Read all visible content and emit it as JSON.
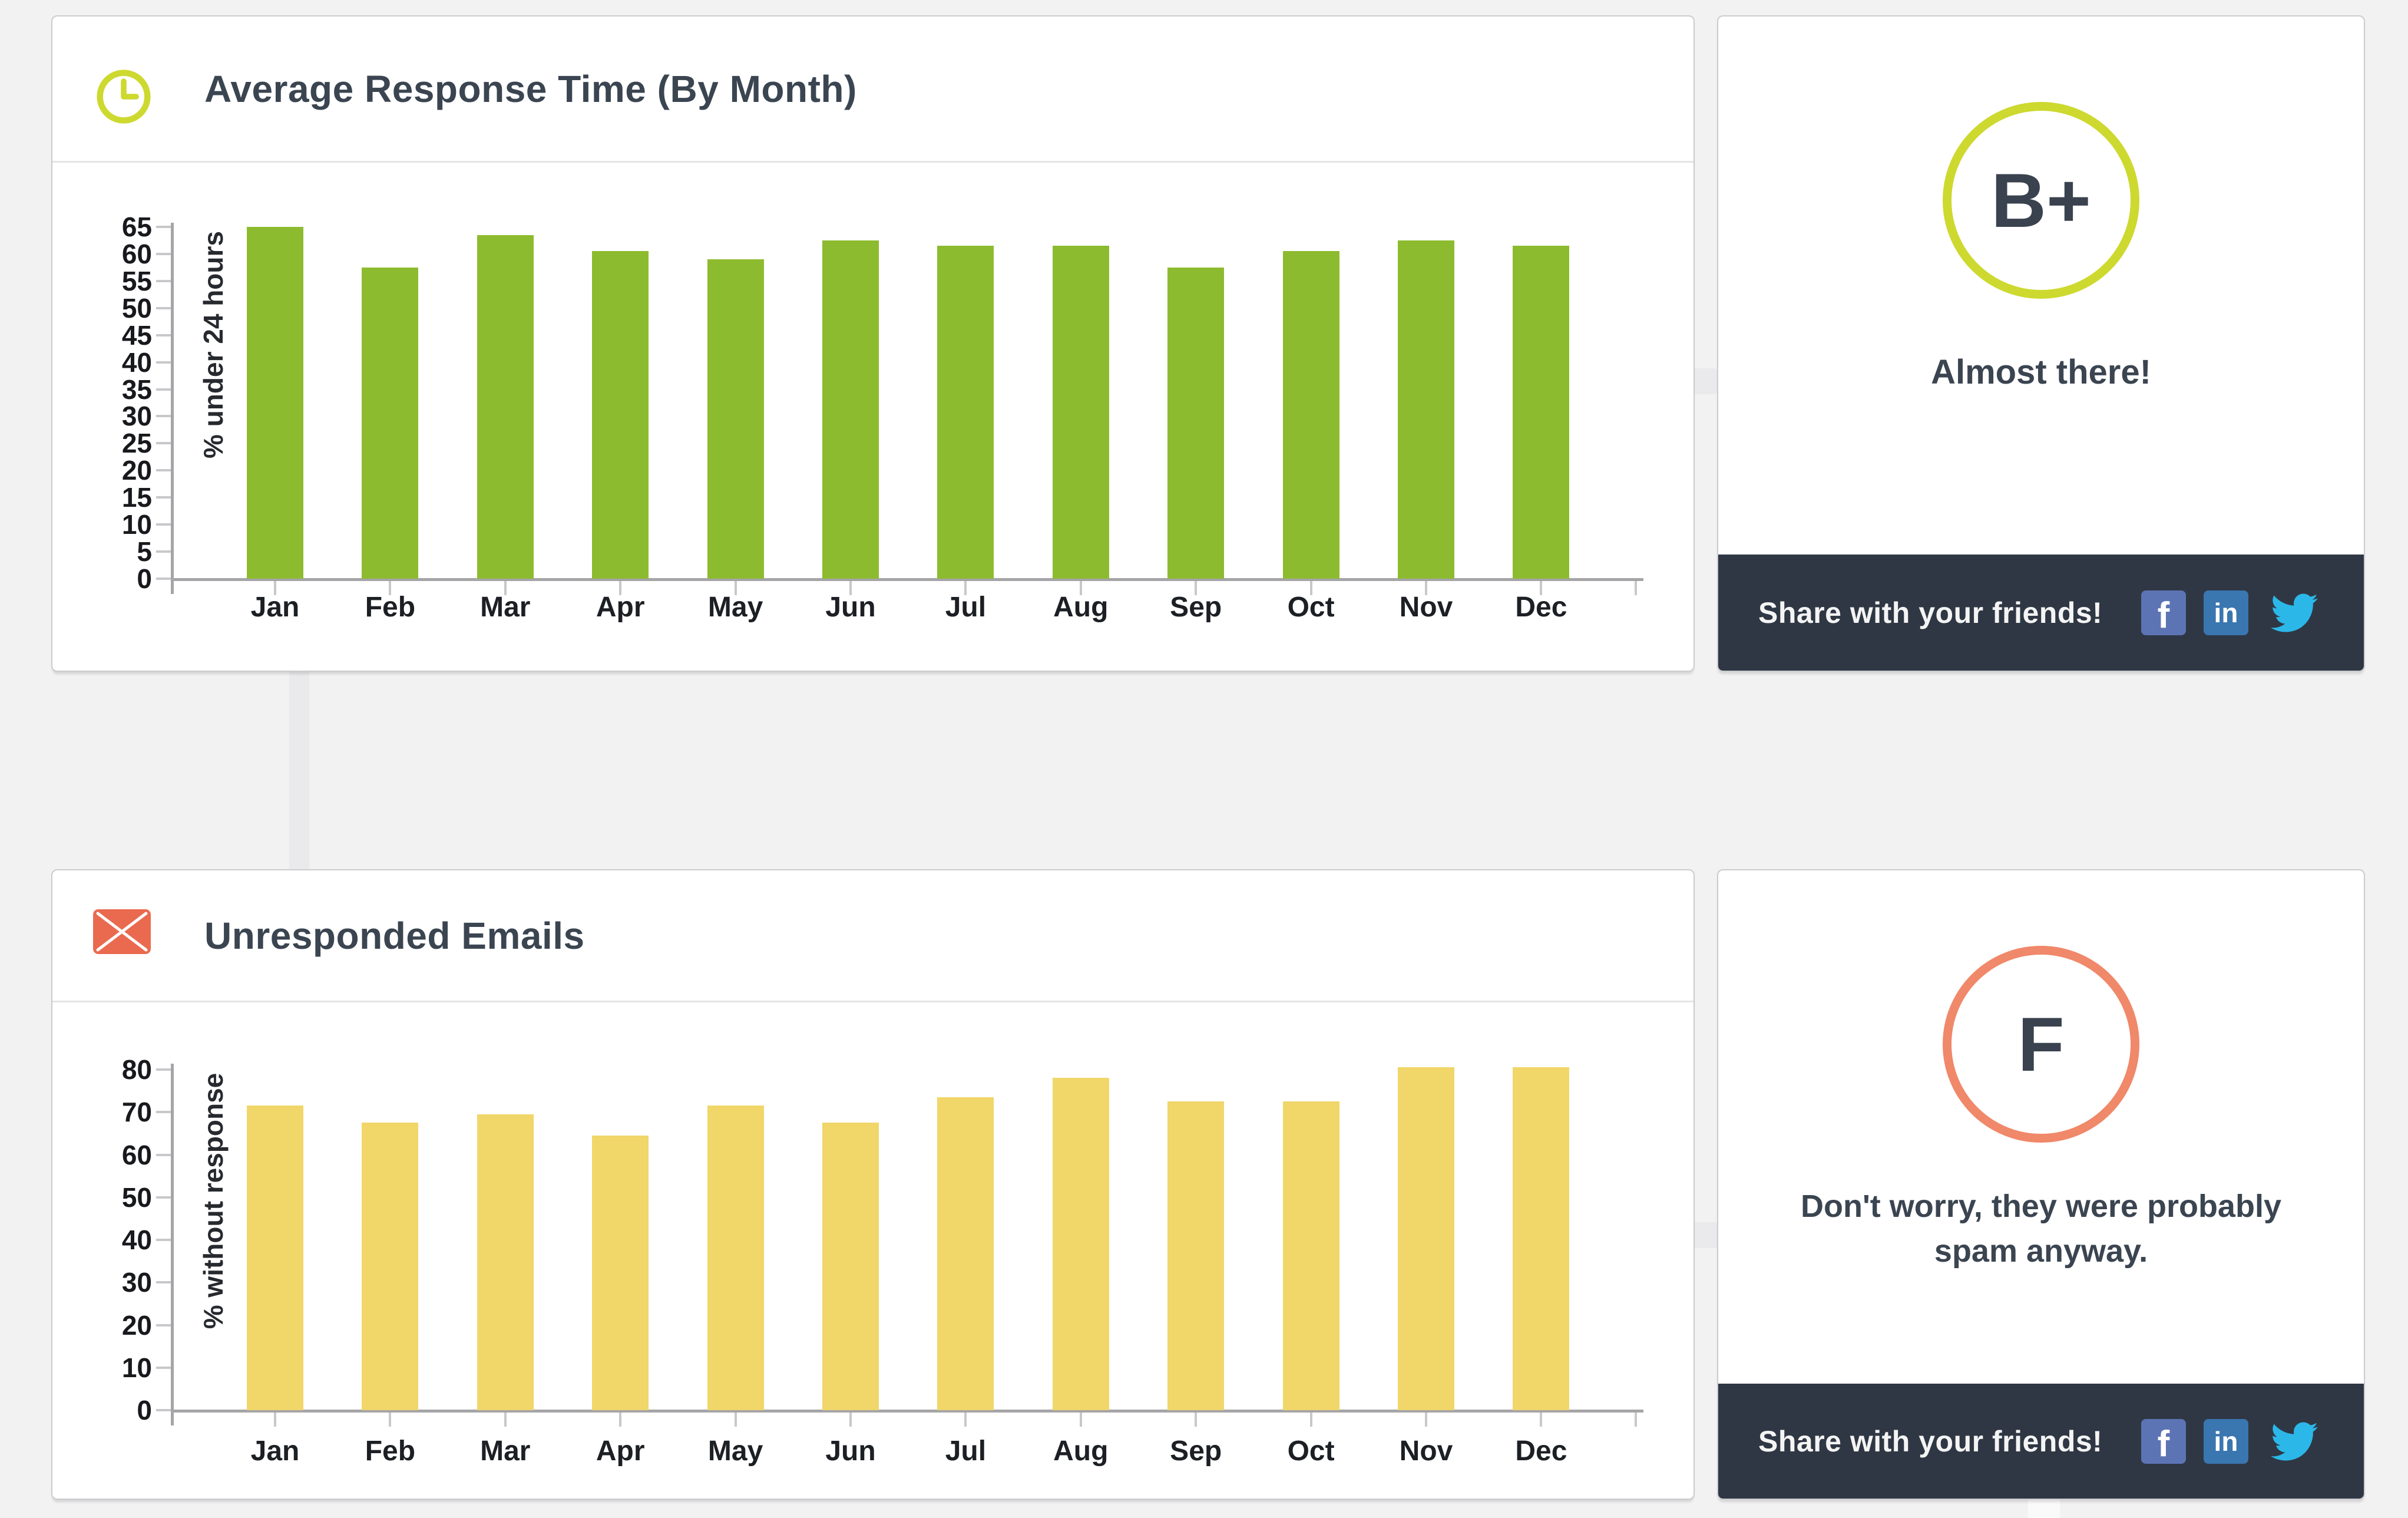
{
  "page": {
    "background": "#f2f2f3"
  },
  "cards": {
    "avg_response": {
      "title": "Average Response Time (By Month)",
      "icon": "clock-icon",
      "icon_color": "#cdd92f"
    },
    "grade_top": {
      "grade": "B+",
      "message": "Almost there!",
      "ring_color": "#cdd92f"
    },
    "unresponded": {
      "title": "Unresponded Emails",
      "icon": "envelope-icon",
      "icon_color": "#ea6a4f"
    },
    "grade_bottom": {
      "grade": "F",
      "message_line_1": "Don't worry, they were probably",
      "message_line_2": "spam anyway.",
      "ring_color": "#f0886a"
    }
  },
  "share_bar": {
    "label": "Share with your friends!",
    "background": "#2f3744",
    "facebook_glyph": "f",
    "linkedin_glyph": "in",
    "icon_colors": {
      "facebook": "#5d74b4",
      "linkedin": "#3a76b0",
      "twitter": "#2cb7e9"
    }
  },
  "chart_data": [
    {
      "type": "bar",
      "title": "Average Response Time (By Month)",
      "xlabel": "",
      "ylabel": "% under 24 hours",
      "categories": [
        "Jan",
        "Feb",
        "Mar",
        "Apr",
        "May",
        "Jun",
        "Jul",
        "Aug",
        "Sep",
        "Oct",
        "Nov",
        "Dec"
      ],
      "values": [
        65,
        57.5,
        63.5,
        60.5,
        59,
        62.5,
        61.5,
        61.5,
        57.5,
        60.5,
        62.5,
        61.5
      ],
      "ylim": [
        0,
        65
      ],
      "ytick_step": 5,
      "yticks": [
        0,
        5,
        10,
        15,
        20,
        25,
        30,
        35,
        40,
        45,
        50,
        55,
        60,
        65
      ],
      "bar_color": "#8dbb2f",
      "grid": false,
      "legend": null
    },
    {
      "type": "bar",
      "title": "Unresponded Emails",
      "xlabel": "",
      "ylabel": "% without response",
      "categories": [
        "Jan",
        "Feb",
        "Mar",
        "Apr",
        "May",
        "Jun",
        "Jul",
        "Aug",
        "Sep",
        "Oct",
        "Nov",
        "Dec"
      ],
      "values": [
        71.5,
        67.5,
        69.5,
        64.5,
        71.5,
        67.5,
        73.5,
        78,
        72.5,
        72.5,
        80.5,
        80.5
      ],
      "ylim": [
        0,
        80
      ],
      "ytick_step": 10,
      "yticks": [
        0,
        10,
        20,
        30,
        40,
        50,
        60,
        70,
        80
      ],
      "bar_color": "#f1d669",
      "grid": false,
      "legend": null
    }
  ]
}
